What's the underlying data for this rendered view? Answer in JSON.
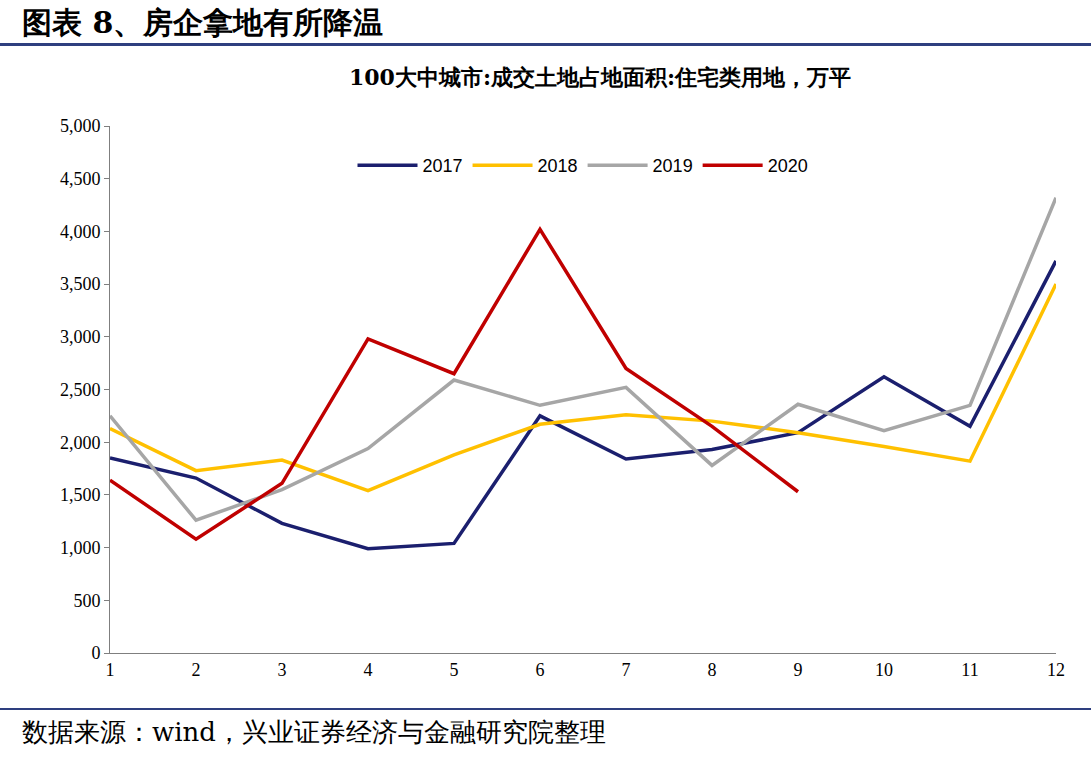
{
  "figure_title": "图表 8、房企拿地有所降温",
  "source": "数据来源：wind，兴业证券经济与金融研究院整理",
  "chart_data": {
    "type": "line",
    "title": "100大中城市:成交土地占地面积:住宅类用地，万平",
    "categories": [
      "1",
      "2",
      "3",
      "4",
      "5",
      "6",
      "7",
      "8",
      "9",
      "10",
      "11",
      "12"
    ],
    "series": [
      {
        "name": "2017",
        "color": "#1b1f6e",
        "values": [
          1850,
          1660,
          1230,
          990,
          1040,
          2250,
          1840,
          1930,
          2090,
          2620,
          2150,
          3720
        ]
      },
      {
        "name": "2018",
        "color": "#ffc000",
        "values": [
          2130,
          1730,
          1830,
          1540,
          1880,
          2170,
          2260,
          2200,
          2090,
          1960,
          1820,
          3500
        ]
      },
      {
        "name": "2019",
        "color": "#a6a6a6",
        "values": [
          2250,
          1260,
          1550,
          1940,
          2590,
          2350,
          2520,
          1780,
          2360,
          2110,
          2350,
          4320
        ]
      },
      {
        "name": "2020",
        "color": "#c00000",
        "values": [
          1640,
          1080,
          1610,
          2980,
          2650,
          4020,
          2700,
          2150,
          1530,
          null,
          null,
          null
        ]
      }
    ],
    "ylim": [
      0,
      5000
    ],
    "yticks": [
      0,
      500,
      {
        "value": 1000,
        "label": "1,000"
      },
      {
        "value": 1500,
        "label": "1,500"
      },
      {
        "value": 2000,
        "label": "2,000"
      },
      {
        "value": 2500,
        "label": "2,500"
      },
      {
        "value": 3000,
        "label": "3,000"
      },
      {
        "value": 3500,
        "label": "3,500"
      },
      {
        "value": 4000,
        "label": "4,000"
      },
      {
        "value": 4500,
        "label": "4,500"
      },
      {
        "value": 5000,
        "label": "5,000"
      }
    ],
    "grid": false,
    "legend": "top"
  }
}
